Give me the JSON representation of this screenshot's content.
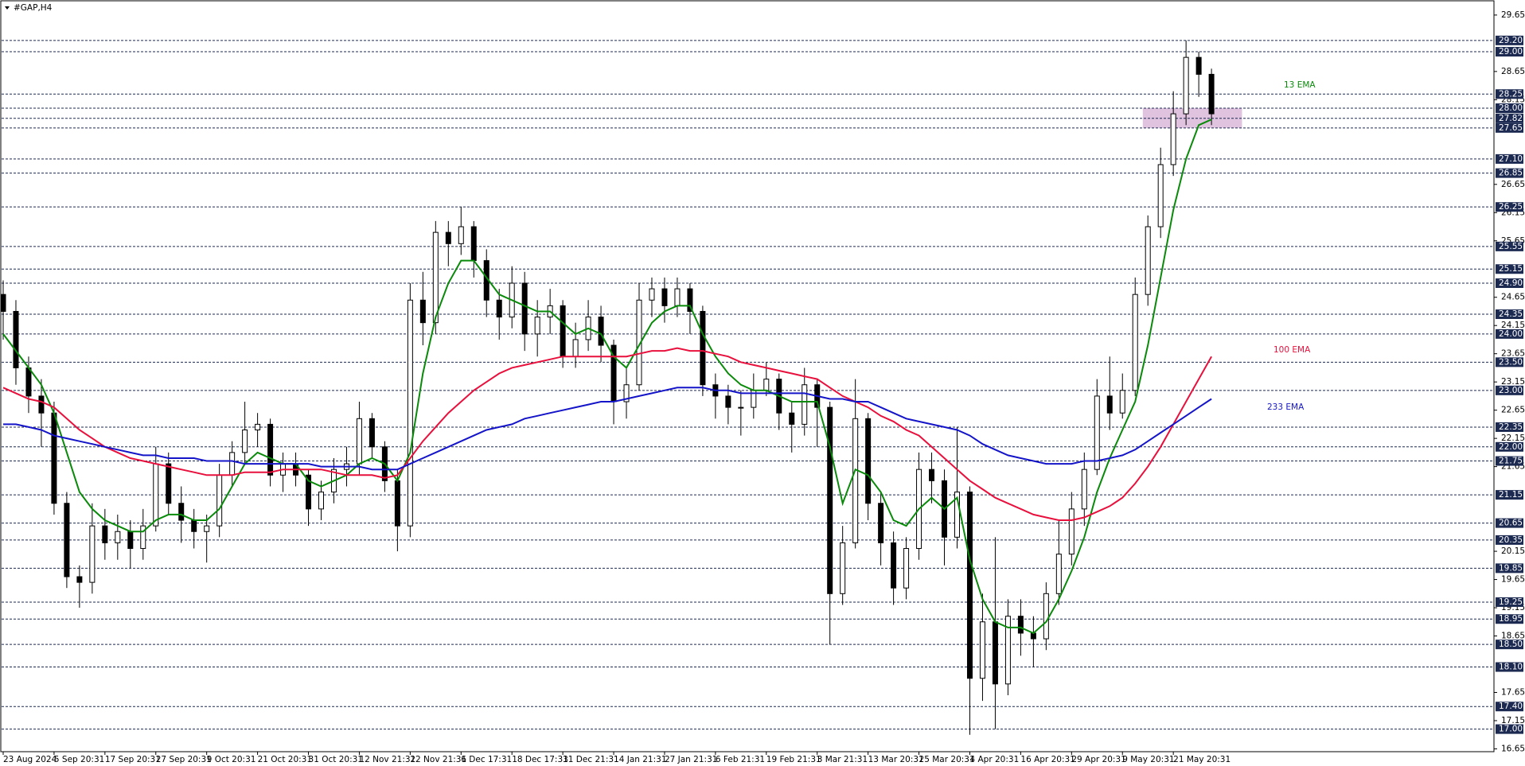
{
  "chart_data": {
    "type": "candlestick",
    "title": "#GAP,H4",
    "categories": [
      "23 Aug 2024",
      null,
      null,
      null,
      "5 Sep 20:31",
      null,
      null,
      null,
      "17 Sep 20:31",
      null,
      null,
      null,
      "27 Sep 20:31",
      null,
      null,
      null,
      "9 Oct 20:31",
      null,
      null,
      null,
      "21 Oct 20:31",
      null,
      null,
      null,
      "31 Oct 20:31",
      null,
      null,
      null,
      "12 Nov 21:31",
      null,
      null,
      null,
      "22 Nov 21:31",
      null,
      null,
      null,
      "6 Dec 17:31",
      null,
      null,
      null,
      "18 Dec 17:31",
      null,
      null,
      null,
      "31 Dec 21:31",
      null,
      null,
      null,
      "14 Jan 21:31",
      null,
      null,
      null,
      "27 Jan 21:31",
      null,
      null,
      null,
      "6 Feb 21:31",
      null,
      null,
      null,
      "19 Feb 21:31",
      null,
      null,
      null,
      "3 Mar 21:31",
      null,
      null,
      null,
      "13 Mar 20:31",
      null,
      null,
      null,
      "25 Mar 20:31",
      null,
      null,
      null,
      "4 Apr 20:31",
      null,
      null,
      null,
      "16 Apr 20:31",
      null,
      null,
      null,
      "29 Apr 20:31",
      null,
      null,
      null,
      "9 May 20:31",
      null,
      null,
      null,
      "21 May 20:31",
      null,
      null,
      null
    ],
    "open": [
      24.7,
      24.4,
      23.4,
      22.9,
      22.6,
      21.0,
      19.7,
      19.6,
      20.6,
      20.3,
      20.5,
      20.2,
      20.6,
      21.7,
      21.0,
      20.7,
      20.5,
      20.6,
      21.5,
      21.9,
      22.3,
      22.4,
      21.5,
      21.7,
      21.5,
      20.9,
      21.2,
      21.6,
      21.7,
      22.5,
      22.0,
      21.4,
      20.6,
      24.6,
      24.2,
      25.8,
      25.6,
      25.9,
      25.3,
      24.6,
      24.3,
      24.9,
      24.0,
      24.3,
      24.5,
      23.6,
      23.9,
      24.3,
      23.8,
      22.8,
      23.1,
      24.6,
      24.8,
      24.5,
      24.8,
      24.4,
      23.1,
      22.9,
      22.7,
      22.7,
      23.0,
      23.2,
      22.6,
      22.4,
      23.1,
      22.7,
      19.4,
      20.3,
      22.5,
      21.0,
      20.3,
      19.5,
      20.2,
      21.6,
      21.4,
      20.4,
      21.2,
      17.9,
      18.9,
      17.8,
      19.0,
      18.7,
      18.6,
      19.4,
      20.1,
      20.9,
      21.6,
      22.9,
      22.6,
      23.0,
      24.7,
      25.9,
      27.0,
      27.9,
      28.9,
      28.6
    ],
    "high": [
      24.95,
      24.6,
      23.6,
      23.2,
      22.8,
      21.2,
      19.9,
      21.0,
      20.9,
      20.8,
      20.7,
      20.9,
      22.0,
      21.9,
      21.3,
      20.9,
      20.8,
      21.7,
      22.1,
      22.8,
      22.6,
      22.5,
      21.9,
      21.9,
      21.6,
      21.4,
      21.8,
      22.0,
      22.8,
      22.6,
      22.1,
      21.6,
      24.9,
      25.1,
      26.0,
      26.0,
      26.25,
      26.0,
      25.5,
      24.8,
      25.2,
      25.1,
      24.6,
      24.8,
      24.6,
      24.2,
      24.6,
      24.5,
      23.9,
      23.4,
      24.9,
      25.0,
      25.0,
      25.0,
      24.9,
      24.5,
      23.3,
      23.1,
      23.0,
      23.3,
      23.5,
      23.3,
      22.8,
      23.4,
      23.2,
      22.8,
      20.6,
      23.2,
      22.6,
      21.2,
      20.5,
      20.4,
      21.9,
      21.9,
      21.6,
      22.35,
      21.3,
      19.4,
      20.4,
      19.3,
      19.3,
      19.0,
      19.6,
      20.7,
      21.2,
      21.9,
      23.2,
      23.6,
      23.3,
      25.0,
      26.1,
      27.3,
      28.3,
      29.2,
      29.0,
      28.7
    ],
    "low": [
      23.9,
      23.1,
      22.6,
      22.0,
      20.8,
      19.5,
      19.15,
      19.4,
      20.0,
      20.0,
      19.85,
      20.0,
      20.5,
      20.8,
      20.3,
      20.2,
      19.95,
      20.4,
      21.3,
      21.7,
      22.0,
      21.3,
      21.2,
      21.3,
      20.6,
      20.7,
      21.0,
      21.3,
      21.5,
      21.8,
      21.2,
      20.15,
      20.4,
      23.8,
      24.0,
      25.2,
      25.4,
      25.0,
      24.3,
      23.9,
      24.1,
      23.7,
      23.6,
      24.0,
      23.4,
      23.4,
      23.7,
      23.5,
      22.4,
      22.5,
      23.0,
      24.3,
      24.2,
      24.3,
      24.0,
      22.9,
      22.5,
      22.4,
      22.2,
      22.5,
      22.9,
      22.3,
      21.9,
      22.2,
      22.0,
      18.5,
      19.2,
      20.2,
      20.7,
      19.9,
      19.2,
      19.3,
      20.0,
      21.0,
      19.9,
      20.2,
      16.9,
      17.5,
      17.0,
      17.6,
      18.3,
      18.1,
      18.4,
      19.2,
      19.9,
      20.6,
      21.5,
      22.3,
      22.5,
      22.9,
      24.5,
      25.7,
      26.8,
      27.7,
      28.2,
      27.7
    ],
    "close": [
      24.4,
      23.4,
      22.9,
      22.6,
      21.0,
      19.7,
      19.6,
      20.6,
      20.3,
      20.5,
      20.2,
      20.6,
      21.7,
      21.0,
      20.7,
      20.5,
      20.6,
      21.5,
      21.9,
      22.3,
      22.4,
      21.5,
      21.7,
      21.5,
      20.9,
      21.2,
      21.6,
      21.7,
      22.5,
      22.0,
      21.4,
      20.6,
      24.6,
      24.2,
      25.8,
      25.6,
      25.9,
      25.3,
      24.6,
      24.3,
      24.9,
      24.0,
      24.3,
      24.5,
      23.6,
      23.9,
      24.3,
      23.8,
      22.8,
      23.1,
      24.6,
      24.8,
      24.5,
      24.8,
      24.4,
      23.1,
      22.9,
      22.7,
      22.7,
      23.0,
      23.2,
      22.6,
      22.4,
      23.1,
      22.7,
      19.4,
      20.3,
      22.5,
      21.0,
      20.3,
      19.5,
      20.2,
      21.6,
      21.4,
      20.4,
      21.2,
      17.9,
      18.9,
      17.8,
      19.0,
      18.7,
      18.6,
      19.4,
      20.1,
      20.9,
      21.6,
      22.9,
      22.6,
      23.0,
      24.7,
      25.9,
      27.0,
      27.9,
      28.9,
      28.6,
      27.9
    ],
    "up_color": "#ffffff",
    "down_color": "#000000",
    "series": [
      {
        "name": "13 EMA",
        "color": "#0a8a0a",
        "values": [
          24.0,
          23.7,
          23.4,
          23.1,
          22.6,
          21.9,
          21.2,
          20.9,
          20.7,
          20.6,
          20.5,
          20.5,
          20.7,
          20.8,
          20.8,
          20.7,
          20.7,
          20.9,
          21.3,
          21.7,
          21.9,
          21.8,
          21.7,
          21.7,
          21.4,
          21.3,
          21.4,
          21.5,
          21.7,
          21.8,
          21.7,
          21.4,
          21.9,
          23.3,
          24.3,
          24.9,
          25.3,
          25.3,
          25.0,
          24.7,
          24.6,
          24.5,
          24.4,
          24.4,
          24.2,
          24.0,
          24.1,
          24.0,
          23.6,
          23.4,
          23.8,
          24.2,
          24.4,
          24.5,
          24.5,
          24.0,
          23.6,
          23.3,
          23.1,
          23.0,
          23.0,
          22.9,
          22.8,
          22.8,
          22.8,
          22.0,
          21.0,
          21.6,
          21.5,
          21.2,
          20.7,
          20.6,
          20.9,
          21.1,
          20.9,
          21.1,
          20.0,
          19.3,
          18.9,
          18.8,
          18.8,
          18.7,
          18.9,
          19.3,
          19.8,
          20.4,
          21.2,
          21.8,
          22.3,
          22.8,
          23.8,
          25.0,
          26.2,
          27.1,
          27.7,
          27.8
        ]
      },
      {
        "name": "100 EMA",
        "color": "#e8103c",
        "values": [
          23.05,
          22.95,
          22.85,
          22.8,
          22.7,
          22.5,
          22.3,
          22.15,
          22.0,
          21.9,
          21.8,
          21.75,
          21.7,
          21.65,
          21.6,
          21.55,
          21.5,
          21.5,
          21.5,
          21.55,
          21.55,
          21.55,
          21.6,
          21.6,
          21.6,
          21.6,
          21.55,
          21.5,
          21.5,
          21.5,
          21.45,
          21.5,
          21.8,
          22.1,
          22.35,
          22.6,
          22.8,
          23.0,
          23.15,
          23.3,
          23.4,
          23.45,
          23.5,
          23.55,
          23.6,
          23.6,
          23.6,
          23.6,
          23.6,
          23.6,
          23.65,
          23.7,
          23.7,
          23.75,
          23.7,
          23.7,
          23.65,
          23.6,
          23.5,
          23.45,
          23.4,
          23.35,
          23.3,
          23.25,
          23.2,
          23.05,
          22.9,
          22.8,
          22.7,
          22.55,
          22.45,
          22.3,
          22.2,
          22.0,
          21.8,
          21.6,
          21.4,
          21.25,
          21.1,
          21.0,
          20.9,
          20.8,
          20.75,
          20.7,
          20.7,
          20.75,
          20.85,
          20.95,
          21.1,
          21.35,
          21.65,
          22.0,
          22.4,
          22.8,
          23.2,
          23.6
        ]
      },
      {
        "name": "233 EMA",
        "color": "#1414c8",
        "values": [
          22.4,
          22.4,
          22.35,
          22.3,
          22.2,
          22.15,
          22.1,
          22.05,
          22.0,
          21.95,
          21.9,
          21.85,
          21.85,
          21.8,
          21.8,
          21.8,
          21.75,
          21.75,
          21.75,
          21.7,
          21.7,
          21.7,
          21.7,
          21.7,
          21.7,
          21.65,
          21.65,
          21.65,
          21.65,
          21.6,
          21.6,
          21.6,
          21.7,
          21.8,
          21.9,
          22.0,
          22.1,
          22.2,
          22.3,
          22.35,
          22.4,
          22.5,
          22.55,
          22.6,
          22.65,
          22.7,
          22.75,
          22.8,
          22.8,
          22.85,
          22.9,
          22.95,
          23.0,
          23.05,
          23.05,
          23.05,
          23.0,
          23.0,
          22.95,
          22.95,
          22.95,
          22.95,
          22.95,
          22.95,
          22.9,
          22.85,
          22.85,
          22.8,
          22.8,
          22.7,
          22.6,
          22.5,
          22.45,
          22.4,
          22.35,
          22.3,
          22.2,
          22.05,
          21.95,
          21.85,
          21.8,
          21.75,
          21.7,
          21.7,
          21.7,
          21.75,
          21.75,
          21.8,
          21.85,
          21.95,
          22.1,
          22.25,
          22.4,
          22.55,
          22.7,
          22.85
        ]
      }
    ],
    "ylim": [
      16.6,
      29.86
    ],
    "yticks": [
      29.65,
      28.65,
      28.15,
      26.65,
      26.15,
      25.65,
      24.65,
      24.15,
      23.65,
      23.15,
      22.65,
      22.15,
      21.65,
      20.15,
      19.65,
      19.15,
      18.65,
      17.65,
      17.15,
      16.65
    ],
    "levels": [
      {
        "value": 29.2,
        "label": "29.20"
      },
      {
        "value": 29.0,
        "label": "29.00"
      },
      {
        "value": 28.25,
        "label": "28.25"
      },
      {
        "value": 28.0,
        "label": "28.00"
      },
      {
        "value": 27.82,
        "label": "27.82"
      },
      {
        "value": 27.65,
        "label": "27.65"
      },
      {
        "value": 27.1,
        "label": "27.10"
      },
      {
        "value": 26.85,
        "label": "26.85"
      },
      {
        "value": 26.25,
        "label": "26.25"
      },
      {
        "value": 25.55,
        "label": "25.55"
      },
      {
        "value": 25.15,
        "label": "25.15"
      },
      {
        "value": 24.9,
        "label": "24.90"
      },
      {
        "value": 24.35,
        "label": "24.35"
      },
      {
        "value": 24.0,
        "label": "24.00"
      },
      {
        "value": 23.5,
        "label": "23.50"
      },
      {
        "value": 23.0,
        "label": "23.00"
      },
      {
        "value": 22.35,
        "label": "22.35"
      },
      {
        "value": 22.0,
        "label": "22.00"
      },
      {
        "value": 21.75,
        "label": "21.75"
      },
      {
        "value": 21.15,
        "label": "21.15"
      },
      {
        "value": 20.65,
        "label": "20.65"
      },
      {
        "value": 20.35,
        "label": "20.35"
      },
      {
        "value": 19.85,
        "label": "19.85"
      },
      {
        "value": 19.25,
        "label": "19.25"
      },
      {
        "value": 18.95,
        "label": "18.95"
      },
      {
        "value": 18.5,
        "label": "18.50"
      },
      {
        "value": 18.1,
        "label": "18.10"
      },
      {
        "value": 17.4,
        "label": "17.40"
      },
      {
        "value": 17.0,
        "label": "17.00"
      }
    ],
    "level_color": "#1c2a52",
    "zone": [
      27.65,
      28.0
    ],
    "zone_color": "#d9b8d9"
  }
}
